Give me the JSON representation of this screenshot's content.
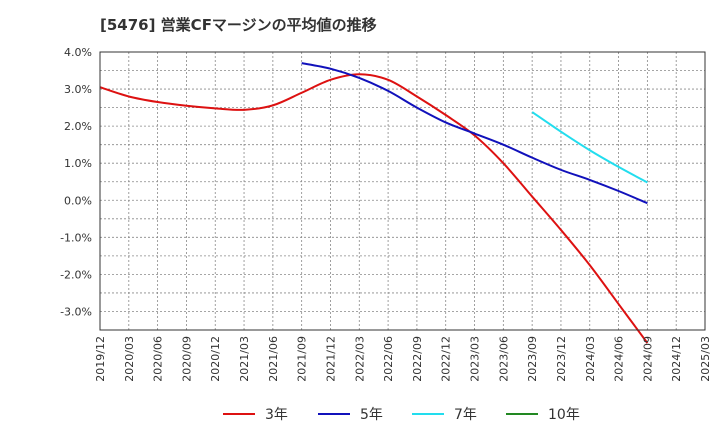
{
  "chart_data": {
    "type": "line",
    "title": "[5476]  営業CFマージンの平均値の推移",
    "xlabel": "",
    "ylabel": "",
    "x_ticks": [
      "2019/12",
      "2020/03",
      "2020/06",
      "2020/09",
      "2020/12",
      "2021/03",
      "2021/06",
      "2021/09",
      "2021/12",
      "2022/03",
      "2022/06",
      "2022/09",
      "2022/12",
      "2023/03",
      "2023/06",
      "2023/09",
      "2023/12",
      "2024/03",
      "2024/06",
      "2024/09",
      "2024/12",
      "2025/03"
    ],
    "y_ticks": [
      "4.0%",
      "3.0%",
      "2.0%",
      "1.0%",
      "0.0%",
      "-1.0%",
      "-2.0%",
      "-3.0%"
    ],
    "ylim": [
      -3.5,
      4.0
    ],
    "grid": true,
    "legend_position": "bottom",
    "series": [
      {
        "name": "3年",
        "color": "#dd1111",
        "x": [
          "2019/12",
          "2020/03",
          "2020/06",
          "2020/09",
          "2020/12",
          "2021/03",
          "2021/06",
          "2021/09",
          "2021/12",
          "2022/03",
          "2022/06",
          "2022/09",
          "2022/12",
          "2023/03",
          "2023/06",
          "2023/09",
          "2023/12",
          "2024/03",
          "2024/06",
          "2024/09"
        ],
        "values": [
          3.05,
          2.8,
          2.65,
          2.55,
          2.48,
          2.44,
          2.56,
          2.9,
          3.25,
          3.4,
          3.25,
          2.8,
          2.3,
          1.75,
          1.0,
          0.1,
          -0.8,
          -1.75,
          -2.8,
          -3.85
        ]
      },
      {
        "name": "5年",
        "color": "#1111bb",
        "x": [
          "2021/09",
          "2021/12",
          "2022/03",
          "2022/06",
          "2022/09",
          "2022/12",
          "2023/03",
          "2023/06",
          "2023/09",
          "2023/12",
          "2024/03",
          "2024/06",
          "2024/09"
        ],
        "values": [
          3.7,
          3.55,
          3.3,
          2.95,
          2.5,
          2.1,
          1.8,
          1.5,
          1.15,
          0.82,
          0.55,
          0.25,
          -0.08
        ]
      },
      {
        "name": "7年",
        "color": "#22ddee",
        "x": [
          "2023/09",
          "2023/12",
          "2024/03",
          "2024/06",
          "2024/09"
        ],
        "values": [
          2.38,
          1.85,
          1.35,
          0.9,
          0.48
        ]
      },
      {
        "name": "10年",
        "color": "#228822",
        "x": [],
        "values": []
      }
    ]
  }
}
